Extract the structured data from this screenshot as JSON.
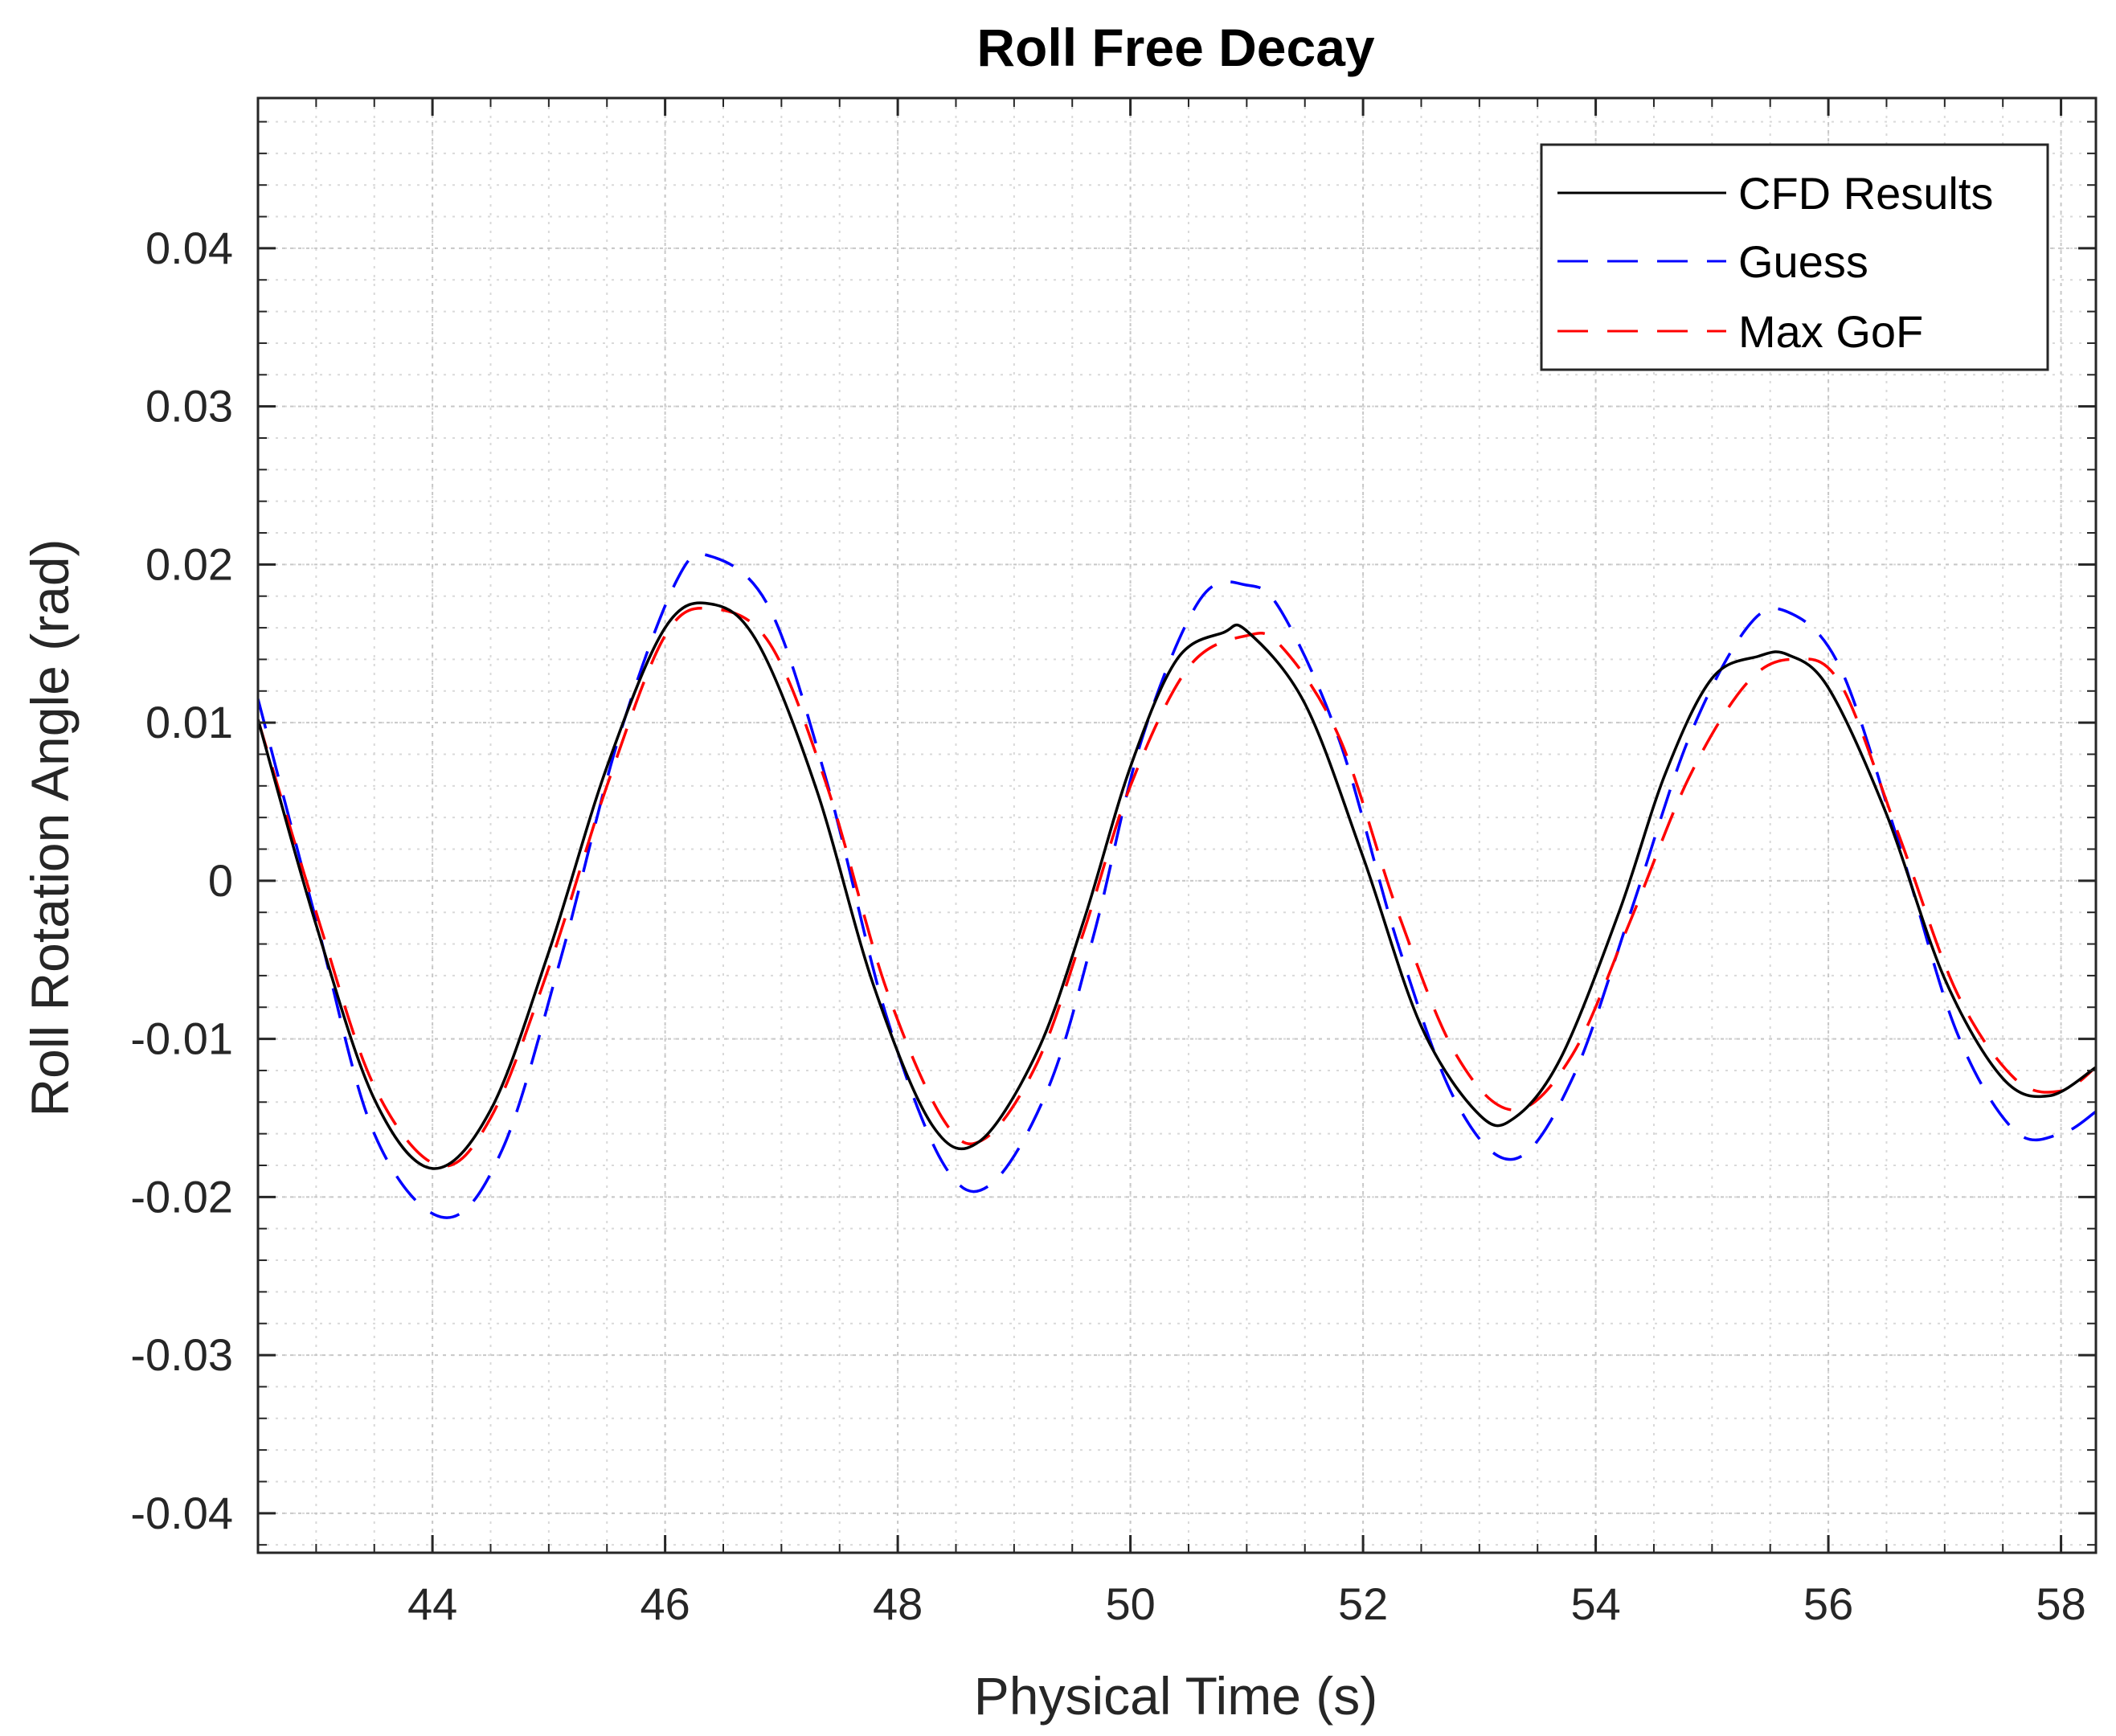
{
  "chart_data": {
    "type": "line",
    "title": "Roll Free Decay",
    "xlabel": "Physical Time (s)",
    "ylabel": "Roll Rotation Angle (rad)",
    "xlim": [
      42.5,
      58.3
    ],
    "ylim": [
      -0.0425,
      0.0495
    ],
    "xticks": [
      44,
      46,
      48,
      50,
      52,
      54,
      56,
      58
    ],
    "xtick_labels": [
      "44",
      "46",
      "48",
      "50",
      "52",
      "54",
      "56",
      "58"
    ],
    "yticks": [
      0.04,
      0.03,
      0.02,
      0.01,
      0,
      -0.01,
      -0.02,
      -0.03,
      -0.04
    ],
    "ytick_labels": [
      "0.04",
      "0.03",
      "0.02",
      "0.01",
      "0",
      "-0.01",
      "-0.02",
      "-0.03",
      "-0.04"
    ],
    "grid": true,
    "minor_grid": true,
    "legend_position": "top-right",
    "series": [
      {
        "name": "CFD Results",
        "color": "#000000",
        "dash": "solid",
        "x": [
          42.5,
          43.0,
          43.5,
          44.0,
          44.5,
          45.0,
          45.5,
          46.0,
          46.4,
          46.8,
          47.3,
          47.8,
          48.3,
          48.7,
          49.2,
          49.6,
          50.0,
          50.4,
          50.8,
          51.0,
          51.5,
          52.0,
          52.5,
          53.0,
          53.3,
          53.7,
          54.2,
          54.6,
          55.0,
          55.4,
          55.65,
          56.0,
          56.5,
          57.0,
          57.5,
          57.9,
          58.3
        ],
        "y": [
          0.0102,
          -0.0028,
          -0.0138,
          -0.0182,
          -0.0145,
          -0.0045,
          0.0072,
          0.016,
          0.0175,
          0.015,
          0.0058,
          -0.0068,
          -0.0155,
          -0.0165,
          -0.0108,
          -0.0025,
          0.0072,
          0.014,
          0.0157,
          0.0158,
          0.0112,
          0.0015,
          -0.0092,
          -0.0148,
          -0.015,
          -0.0112,
          -0.002,
          0.0068,
          0.0128,
          0.0142,
          0.0143,
          0.0122,
          0.0042,
          -0.0062,
          -0.0125,
          -0.0136,
          -0.0118
        ]
      },
      {
        "name": "Guess",
        "color": "#0000ff",
        "dash": "dashed",
        "x": [
          42.5,
          43.0,
          43.5,
          44.1,
          44.6,
          45.1,
          45.6,
          46.1,
          46.4,
          46.9,
          47.4,
          47.9,
          48.4,
          48.8,
          49.3,
          49.7,
          50.1,
          50.6,
          51.0,
          51.3,
          51.8,
          52.3,
          52.8,
          53.3,
          53.8,
          54.3,
          54.8,
          55.3,
          55.65,
          56.1,
          56.6,
          57.1,
          57.6,
          58.0,
          58.3
        ],
        "y": [
          0.0115,
          -0.0025,
          -0.016,
          -0.0213,
          -0.017,
          -0.005,
          0.009,
          0.019,
          0.0205,
          0.0172,
          0.006,
          -0.0085,
          -0.018,
          -0.0192,
          -0.013,
          -0.003,
          0.009,
          0.0178,
          0.0187,
          0.017,
          0.0088,
          -0.004,
          -0.014,
          -0.0176,
          -0.0125,
          -0.002,
          0.009,
          0.016,
          0.017,
          0.0135,
          0.0025,
          -0.0095,
          -0.0158,
          -0.016,
          -0.0146
        ]
      },
      {
        "name": "Max GoF",
        "color": "#ff0000",
        "dash": "dashed",
        "x": [
          42.5,
          43.0,
          43.5,
          44.05,
          44.5,
          45.0,
          45.5,
          46.0,
          46.4,
          46.9,
          47.4,
          47.9,
          48.4,
          48.75,
          49.2,
          49.6,
          50.0,
          50.5,
          51.0,
          51.3,
          51.8,
          52.3,
          52.8,
          53.3,
          53.8,
          54.3,
          54.8,
          55.3,
          55.7,
          56.1,
          56.6,
          57.1,
          57.6,
          58.0,
          58.3
        ],
        "y": [
          0.0102,
          -0.002,
          -0.013,
          -0.018,
          -0.015,
          -0.0055,
          0.006,
          0.0155,
          0.0172,
          0.015,
          0.0058,
          -0.0068,
          -0.0152,
          -0.0163,
          -0.0115,
          -0.0032,
          0.006,
          0.0135,
          0.0155,
          0.0148,
          0.009,
          -0.002,
          -0.011,
          -0.0145,
          -0.011,
          -0.0025,
          0.0065,
          0.0125,
          0.014,
          0.0125,
          0.003,
          -0.007,
          -0.0125,
          -0.0133,
          -0.0118
        ]
      }
    ]
  }
}
